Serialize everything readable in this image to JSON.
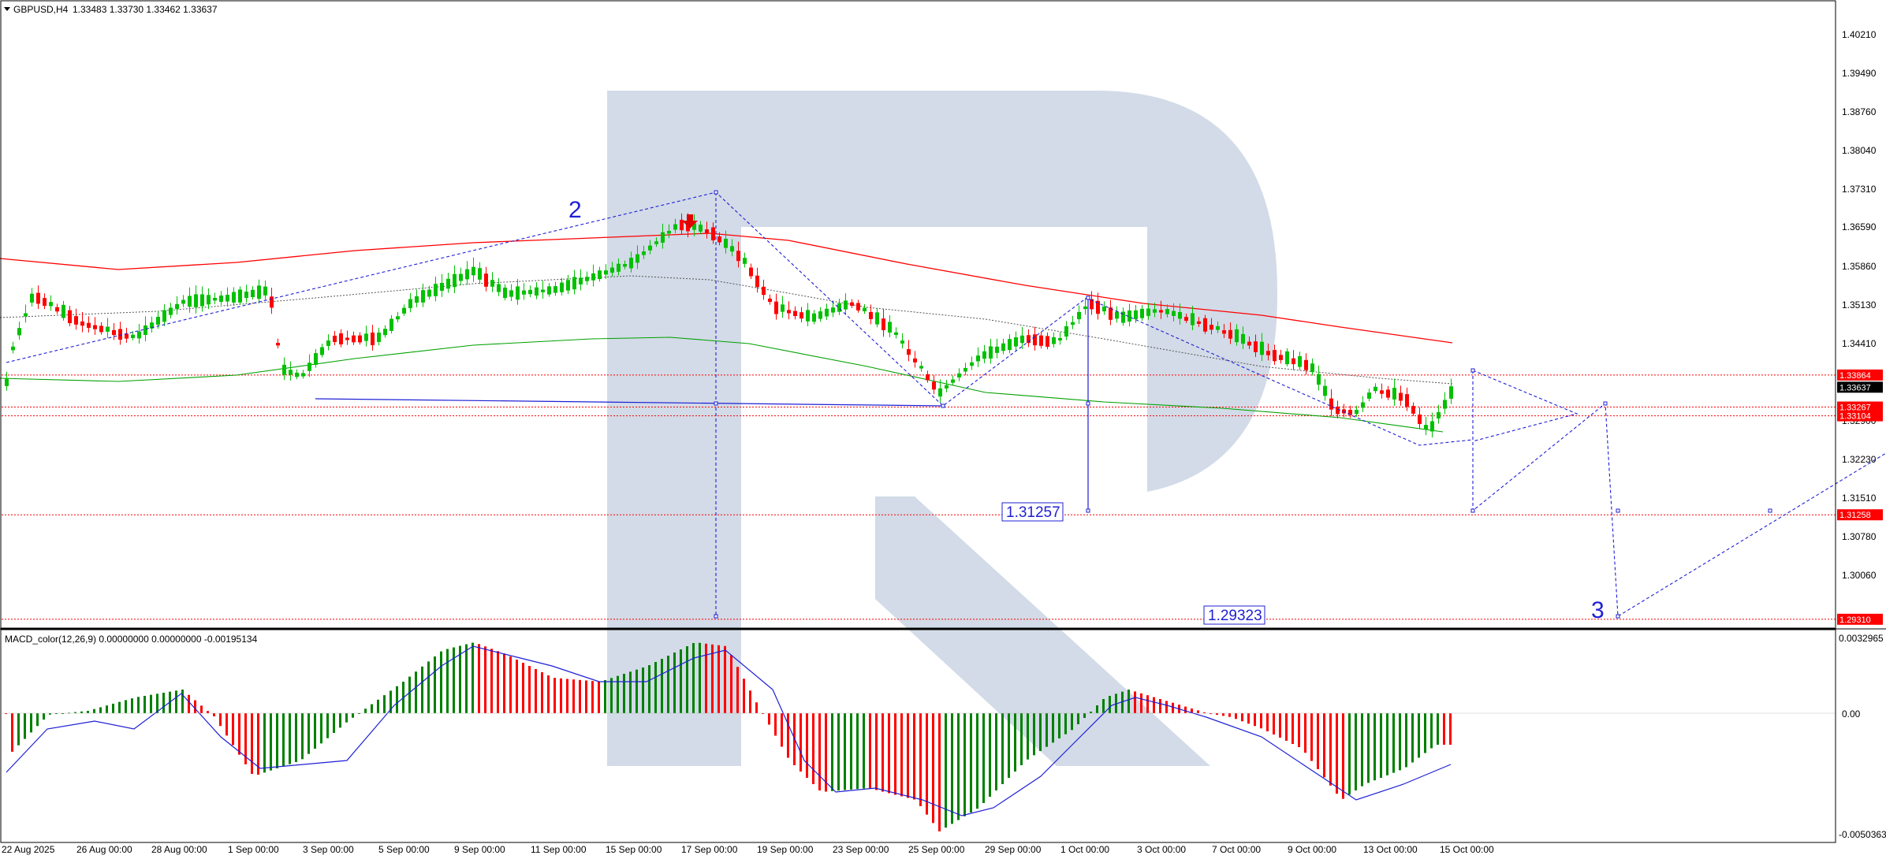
{
  "header": {
    "symbol_timeframe": "GBPUSD,H4",
    "ohlc": "1.33483 1.33730 1.33462 1.33637"
  },
  "macd": {
    "label": "MACD_color(12,26,9) 0.00000000 0.00000000 -0.00195134",
    "ticks": [
      "0.0032965",
      "0.00",
      "-0.0050363"
    ]
  },
  "price_axis": {
    "ticks": [
      "1.40210",
      "1.39490",
      "1.38760",
      "1.38040",
      "1.37310",
      "1.36590",
      "1.35860",
      "1.35130",
      "1.34410",
      "1.32900",
      "1.32230",
      "1.31510",
      "1.30780",
      "1.30060"
    ]
  },
  "price_tags": [
    {
      "name": "level-1-33864",
      "text": "1.33864",
      "price": 1.33864,
      "bg": "#ff0000",
      "fg": "#ffffff"
    },
    {
      "name": "current-price",
      "text": "1.33637",
      "price": 1.33637,
      "bg": "#000000",
      "fg": "#ffffff"
    },
    {
      "name": "level-1-33267",
      "text": "1.33267",
      "price": 1.33267,
      "bg": "#ff0000",
      "fg": "#ffffff"
    },
    {
      "name": "level-1-33104",
      "text": "1.33104",
      "price": 1.33104,
      "bg": "#ff0000",
      "fg": "#ffffff"
    },
    {
      "name": "level-1-31258",
      "text": "1.31258",
      "price": 1.31258,
      "bg": "#ff0000",
      "fg": "#ffffff"
    },
    {
      "name": "level-1-29310",
      "text": "1.29310",
      "price": 1.2931,
      "bg": "#ff0000",
      "fg": "#ffffff"
    }
  ],
  "time_axis": {
    "ticks": [
      "22 Aug 2025",
      "26 Aug 00:00",
      "28 Aug 00:00",
      "1 Sep 00:00",
      "3 Sep 00:00",
      "5 Sep 00:00",
      "9 Sep 00:00",
      "11 Sep 00:00",
      "15 Sep 00:00",
      "17 Sep 00:00",
      "19 Sep 00:00",
      "23 Sep 00:00",
      "25 Sep 00:00",
      "29 Sep 00:00",
      "1 Oct 00:00",
      "3 Oct 00:00",
      "7 Oct 00:00",
      "9 Oct 00:00",
      "13 Oct 00:00",
      "15 Oct 00:00"
    ]
  },
  "annotations": {
    "wave_2": "2",
    "wave_3": "3",
    "target_1": "1.31257",
    "target_2": "1.29323"
  },
  "colors": {
    "bull": "#00c000",
    "bear": "#ff0000",
    "ma_red": "#ff0000",
    "ma_green": "#00a000",
    "forecast": "#1f1fd6",
    "watermark": "#d2dbe7",
    "macd_bull": "#008000",
    "macd_bear": "#ff0000",
    "macd_signal": "#1f1fd6"
  }
}
